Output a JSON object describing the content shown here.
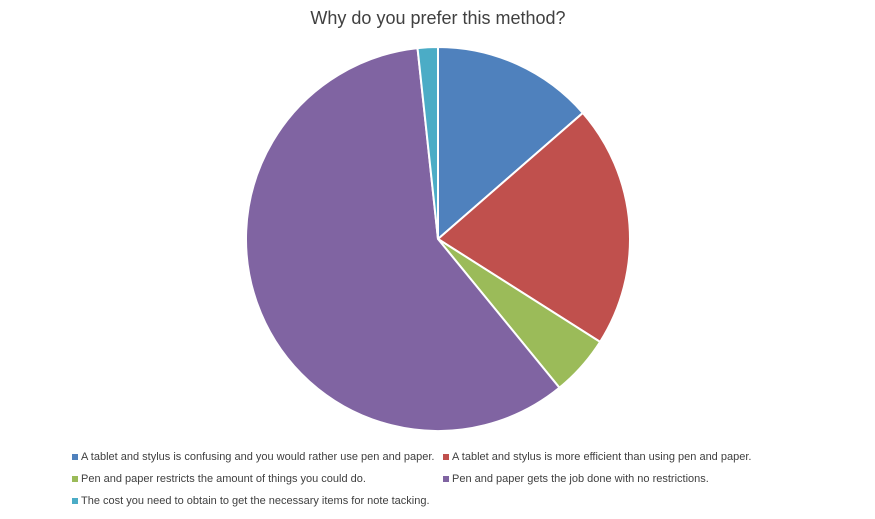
{
  "chart_data": {
    "type": "pie",
    "title": "Why do you prefer this method?",
    "categories": [
      "A tablet and stylus is confusing and you would rather use pen and paper.",
      "A tablet and stylus is more efficient than using pen and paper.",
      "Pen and paper restricts the amount of things you could do.",
      "Pen and paper gets the job done with no restrictions.",
      "The cost you need to obtain to get the necessary items for note tacking."
    ],
    "values": [
      13.6,
      20.4,
      5.1,
      59.2,
      1.7
    ],
    "colors": [
      "#4f81bd",
      "#c0504d",
      "#9bbb59",
      "#8064a2",
      "#4bacc6"
    ],
    "legend": "bottom"
  }
}
